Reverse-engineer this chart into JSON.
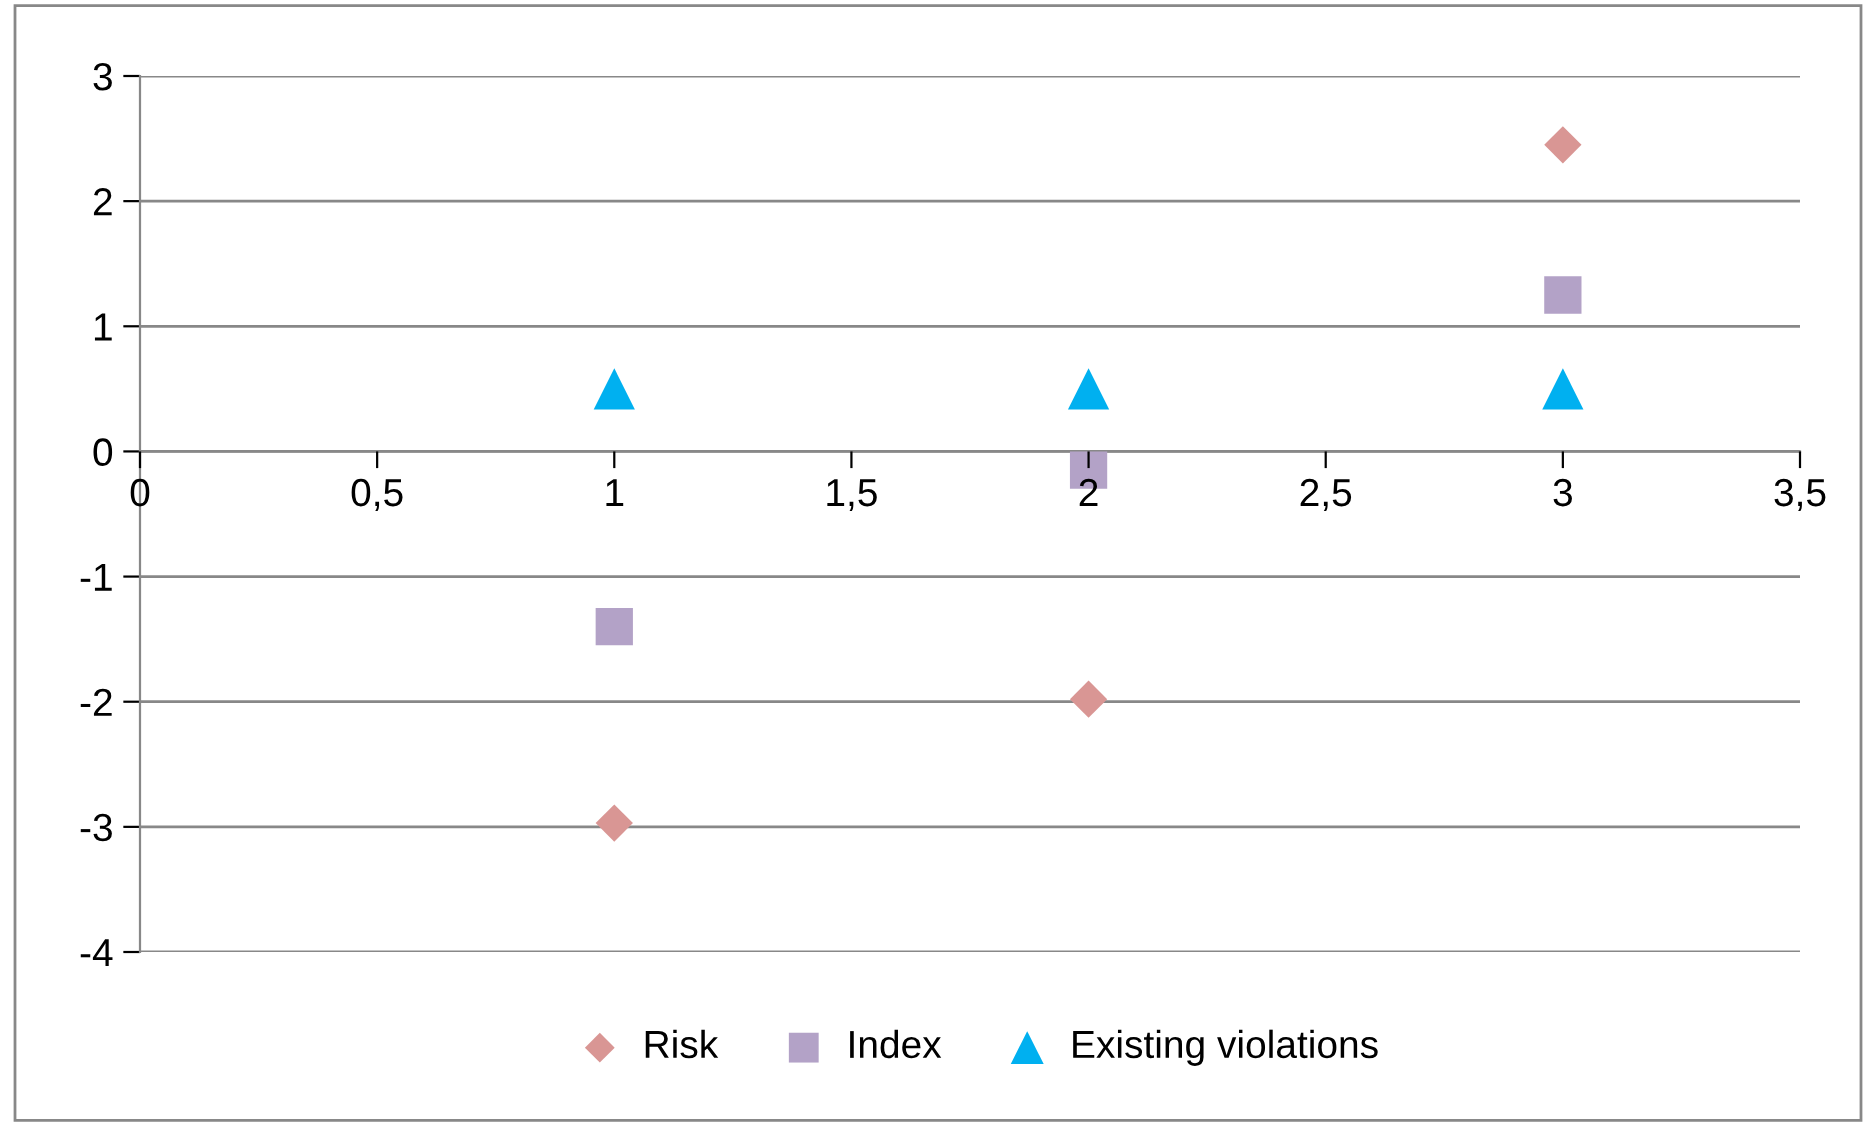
{
  "chart_data": {
    "type": "scatter",
    "x": [
      1,
      2,
      3
    ],
    "series": [
      {
        "name": "Risk",
        "color": "#d99694",
        "marker": "diamond",
        "values": [
          -2.97,
          -1.98,
          2.45
        ]
      },
      {
        "name": "Index",
        "color": "#b3a2c7",
        "marker": "square",
        "values": [
          -1.4,
          -0.15,
          1.25
        ]
      },
      {
        "name": "Existing violations",
        "color": "#00b0f0",
        "marker": "triangle",
        "values": [
          0.5,
          0.5,
          0.5
        ]
      }
    ],
    "xlim": [
      0,
      3.5
    ],
    "xticks": [
      0,
      {
        "value": 0.5,
        "label": "0,5"
      },
      1,
      {
        "value": 1.5,
        "label": "1,5"
      },
      2,
      {
        "value": 2.5,
        "label": "2,5"
      },
      3,
      {
        "value": 3.5,
        "label": "3,5"
      }
    ],
    "ylim": [
      -4,
      3
    ],
    "yticks": [
      -4,
      -3,
      -2,
      -1,
      0,
      1,
      2,
      3
    ],
    "grid": "y",
    "legend": "bottom"
  }
}
